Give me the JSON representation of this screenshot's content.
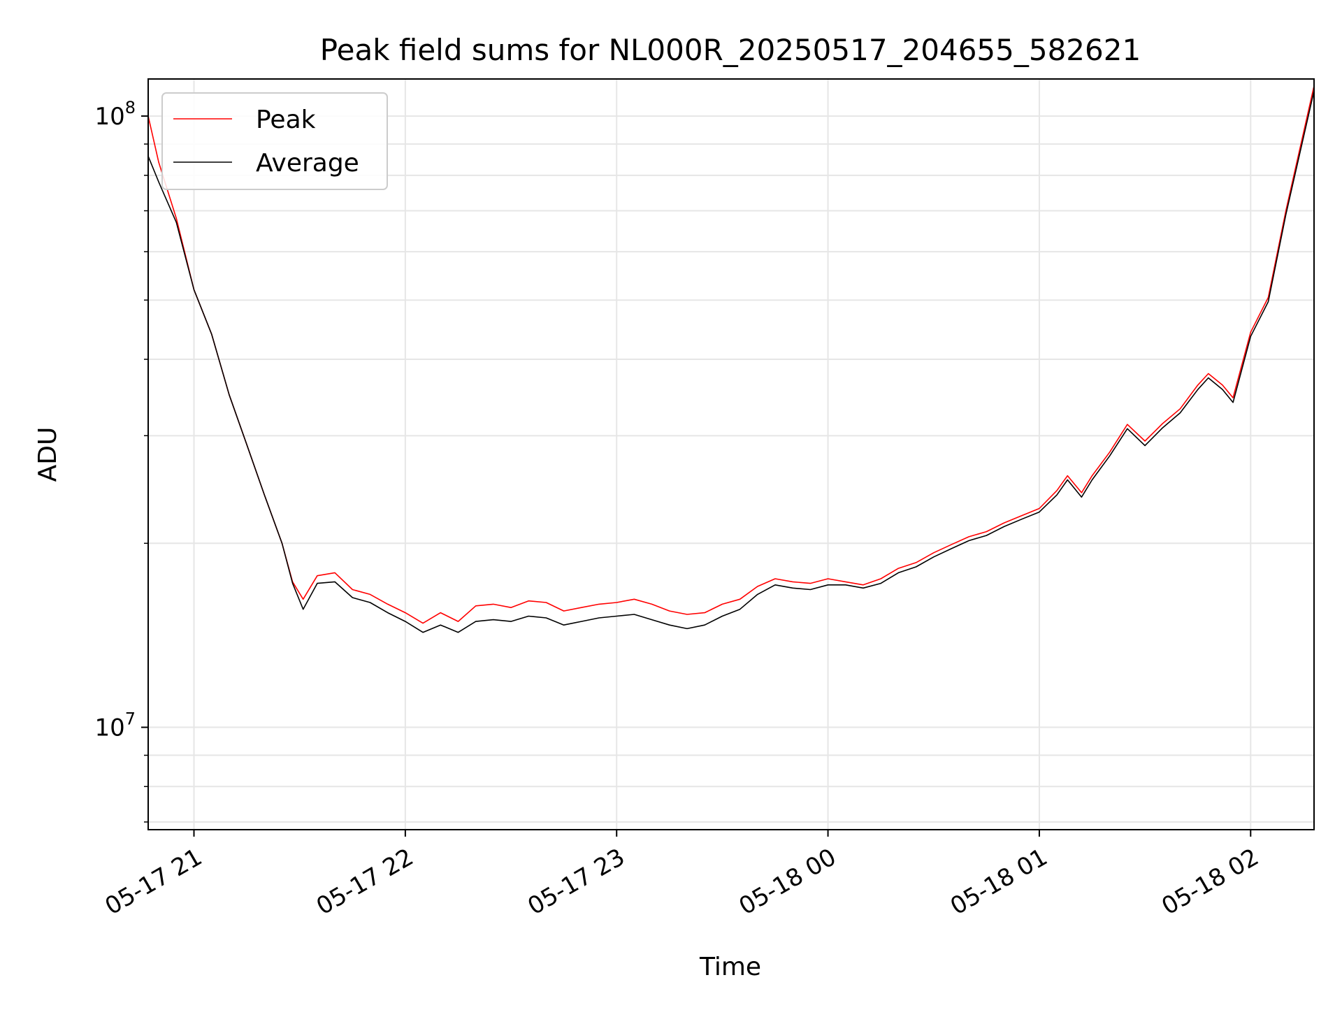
{
  "chart_data": {
    "type": "line",
    "title": "Peak field sums for NL000R_20250517_204655_582621",
    "xlabel": "Time",
    "ylabel": "ADU",
    "yscale": "log",
    "xlim": [
      "2025-05-17 20:47",
      "2025-05-18 02:18"
    ],
    "ylim": [
      6800000,
      115000000
    ],
    "grid": true,
    "legend_position": "top-left",
    "x_ticks": [
      {
        "value": "2025-05-17 21:00",
        "label": "05-17 21"
      },
      {
        "value": "2025-05-17 22:00",
        "label": "05-17 22"
      },
      {
        "value": "2025-05-17 23:00",
        "label": "05-17 23"
      },
      {
        "value": "2025-05-18 00:00",
        "label": "05-18 00"
      },
      {
        "value": "2025-05-18 01:00",
        "label": "05-18 01"
      },
      {
        "value": "2025-05-18 02:00",
        "label": "05-18 02"
      }
    ],
    "y_ticks": [
      {
        "value": 10000000,
        "base": "10",
        "exp": "7"
      },
      {
        "value": 100000000,
        "base": "10",
        "exp": "8"
      }
    ],
    "series": [
      {
        "name": "Peak",
        "color": "#ff0000",
        "x": [
          "2025-05-17 20:47",
          "2025-05-17 20:50",
          "2025-05-17 20:55",
          "2025-05-17 21:00",
          "2025-05-17 21:05",
          "2025-05-17 21:10",
          "2025-05-17 21:15",
          "2025-05-17 21:20",
          "2025-05-17 21:25",
          "2025-05-17 21:28",
          "2025-05-17 21:31",
          "2025-05-17 21:35",
          "2025-05-17 21:40",
          "2025-05-17 21:45",
          "2025-05-17 21:50",
          "2025-05-17 21:55",
          "2025-05-17 22:00",
          "2025-05-17 22:05",
          "2025-05-17 22:10",
          "2025-05-17 22:15",
          "2025-05-17 22:20",
          "2025-05-17 22:25",
          "2025-05-17 22:30",
          "2025-05-17 22:35",
          "2025-05-17 22:40",
          "2025-05-17 22:45",
          "2025-05-17 22:50",
          "2025-05-17 22:55",
          "2025-05-17 23:00",
          "2025-05-17 23:05",
          "2025-05-17 23:10",
          "2025-05-17 23:15",
          "2025-05-17 23:20",
          "2025-05-17 23:25",
          "2025-05-17 23:30",
          "2025-05-17 23:35",
          "2025-05-17 23:40",
          "2025-05-17 23:45",
          "2025-05-17 23:50",
          "2025-05-17 23:55",
          "2025-05-18 00:00",
          "2025-05-18 00:05",
          "2025-05-18 00:10",
          "2025-05-18 00:15",
          "2025-05-18 00:20",
          "2025-05-18 00:25",
          "2025-05-18 00:30",
          "2025-05-18 00:35",
          "2025-05-18 00:40",
          "2025-05-18 00:45",
          "2025-05-18 00:50",
          "2025-05-18 00:55",
          "2025-05-18 01:00",
          "2025-05-18 01:05",
          "2025-05-18 01:08",
          "2025-05-18 01:12",
          "2025-05-18 01:15",
          "2025-05-18 01:20",
          "2025-05-18 01:25",
          "2025-05-18 01:30",
          "2025-05-18 01:35",
          "2025-05-18 01:40",
          "2025-05-18 01:45",
          "2025-05-18 01:48",
          "2025-05-18 01:52",
          "2025-05-18 01:55",
          "2025-05-18 02:00",
          "2025-05-18 02:05",
          "2025-05-18 02:10",
          "2025-05-18 02:18"
        ],
        "values": [
          100000000,
          84000000,
          68000000,
          52000000,
          44000000,
          35000000,
          29000000,
          24000000,
          20000000,
          17300000,
          16200000,
          17700000,
          17900000,
          16800000,
          16500000,
          15900000,
          15400000,
          14800000,
          15400000,
          14900000,
          15800000,
          15900000,
          15700000,
          16100000,
          16000000,
          15500000,
          15700000,
          15900000,
          16000000,
          16200000,
          15900000,
          15500000,
          15300000,
          15400000,
          15900000,
          16200000,
          17000000,
          17500000,
          17300000,
          17200000,
          17500000,
          17300000,
          17100000,
          17500000,
          18200000,
          18600000,
          19300000,
          19900000,
          20500000,
          20900000,
          21600000,
          22200000,
          22800000,
          24400000,
          25800000,
          24200000,
          25800000,
          28200000,
          31300000,
          29400000,
          31400000,
          33200000,
          36300000,
          37900000,
          36300000,
          34600000,
          44300000,
          50500000,
          70000000,
          112000000
        ]
      },
      {
        "name": "Average",
        "color": "#000000",
        "x": [
          "2025-05-17 20:47",
          "2025-05-17 20:50",
          "2025-05-17 20:55",
          "2025-05-17 21:00",
          "2025-05-17 21:05",
          "2025-05-17 21:10",
          "2025-05-17 21:15",
          "2025-05-17 21:20",
          "2025-05-17 21:25",
          "2025-05-17 21:28",
          "2025-05-17 21:31",
          "2025-05-17 21:35",
          "2025-05-17 21:40",
          "2025-05-17 21:45",
          "2025-05-17 21:50",
          "2025-05-17 21:55",
          "2025-05-17 22:00",
          "2025-05-17 22:05",
          "2025-05-17 22:10",
          "2025-05-17 22:15",
          "2025-05-17 22:20",
          "2025-05-17 22:25",
          "2025-05-17 22:30",
          "2025-05-17 22:35",
          "2025-05-17 22:40",
          "2025-05-17 22:45",
          "2025-05-17 22:50",
          "2025-05-17 22:55",
          "2025-05-17 23:00",
          "2025-05-17 23:05",
          "2025-05-17 23:10",
          "2025-05-17 23:15",
          "2025-05-17 23:20",
          "2025-05-17 23:25",
          "2025-05-17 23:30",
          "2025-05-17 23:35",
          "2025-05-17 23:40",
          "2025-05-17 23:45",
          "2025-05-17 23:50",
          "2025-05-17 23:55",
          "2025-05-18 00:00",
          "2025-05-18 00:05",
          "2025-05-18 00:10",
          "2025-05-18 00:15",
          "2025-05-18 00:20",
          "2025-05-18 00:25",
          "2025-05-18 00:30",
          "2025-05-18 00:35",
          "2025-05-18 00:40",
          "2025-05-18 00:45",
          "2025-05-18 00:50",
          "2025-05-18 00:55",
          "2025-05-18 01:00",
          "2025-05-18 01:05",
          "2025-05-18 01:08",
          "2025-05-18 01:12",
          "2025-05-18 01:15",
          "2025-05-18 01:20",
          "2025-05-18 01:25",
          "2025-05-18 01:30",
          "2025-05-18 01:35",
          "2025-05-18 01:40",
          "2025-05-18 01:45",
          "2025-05-18 01:48",
          "2025-05-18 01:52",
          "2025-05-18 01:55",
          "2025-05-18 02:00",
          "2025-05-18 02:05",
          "2025-05-18 02:10",
          "2025-05-18 02:18"
        ],
        "values": [
          86000000,
          78000000,
          67000000,
          52000000,
          44000000,
          35000000,
          29000000,
          24000000,
          20000000,
          17200000,
          15600000,
          17200000,
          17300000,
          16300000,
          16000000,
          15400000,
          14900000,
          14300000,
          14700000,
          14300000,
          14900000,
          15000000,
          14900000,
          15200000,
          15100000,
          14700000,
          14900000,
          15100000,
          15200000,
          15300000,
          15000000,
          14700000,
          14500000,
          14700000,
          15200000,
          15600000,
          16500000,
          17100000,
          16900000,
          16800000,
          17100000,
          17100000,
          16900000,
          17200000,
          17900000,
          18300000,
          19000000,
          19600000,
          20200000,
          20600000,
          21300000,
          21900000,
          22500000,
          24000000,
          25400000,
          23800000,
          25400000,
          27800000,
          30800000,
          28900000,
          30900000,
          32700000,
          35700000,
          37300000,
          35700000,
          34000000,
          43600000,
          49700000,
          69000000,
          110000000
        ]
      }
    ]
  }
}
